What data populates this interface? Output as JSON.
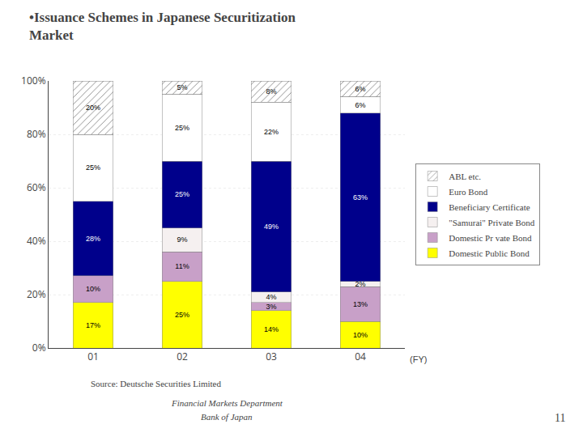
{
  "chart_data": {
    "type": "bar",
    "stacked": true,
    "title": [
      "•Issuance Schemes in Japanese Securitization",
      "Market"
    ],
    "xlabel": "(FY)",
    "categories": [
      "01",
      "02",
      "03",
      "04"
    ],
    "series": [
      {
        "name": "Domestic Public Bond",
        "color": "#FFFF00",
        "values": [
          17,
          25,
          14,
          10
        ],
        "value_labels": [
          "17%",
          "25%",
          "14%",
          "10%"
        ]
      },
      {
        "name": "Domestic Pr vate Bond",
        "color": "#C8A0C8",
        "values": [
          10,
          11,
          3,
          13
        ],
        "value_labels": [
          "10%",
          "11%",
          "3%",
          "13%"
        ]
      },
      {
        "name": "\"Samurai\" Private Bond",
        "color": "#F5F0F0",
        "values": [
          0,
          9,
          4,
          2
        ],
        "value_labels": [
          null,
          "9%",
          "4%",
          "2%"
        ]
      },
      {
        "name": "Beneficiary Certificate",
        "color": "#00008B",
        "values": [
          28,
          25,
          49,
          63
        ],
        "value_labels": [
          "28%",
          "25%",
          "49%",
          "63%"
        ]
      },
      {
        "name": "Euro Bond",
        "color": "#FFFFFF",
        "values": [
          25,
          25,
          22,
          6
        ],
        "value_labels": [
          "25%",
          "25%",
          "22%",
          "6%"
        ]
      },
      {
        "name": "ABL etc.",
        "color": "#FFD0D0",
        "marker": "hatch",
        "values": [
          20,
          5,
          8,
          6
        ],
        "value_labels": [
          "20%",
          "5%",
          "8%",
          "6%"
        ]
      }
    ],
    "ylim": [
      0,
      100
    ],
    "yticks": [
      {
        "value": 0,
        "label": "0%"
      },
      {
        "value": 20,
        "label": "20%"
      },
      {
        "value": 40,
        "label": "40%"
      },
      {
        "value": 60,
        "label": "60%"
      },
      {
        "value": 80,
        "label": "80%"
      },
      {
        "value": 100,
        "label": "100%"
      }
    ],
    "grid": true,
    "data_labels": true,
    "legend": "right",
    "annotations": [
      "Source: Deutsche Securities Limited",
      "Financial Markets Department",
      "Bank of Japan",
      "11"
    ]
  }
}
